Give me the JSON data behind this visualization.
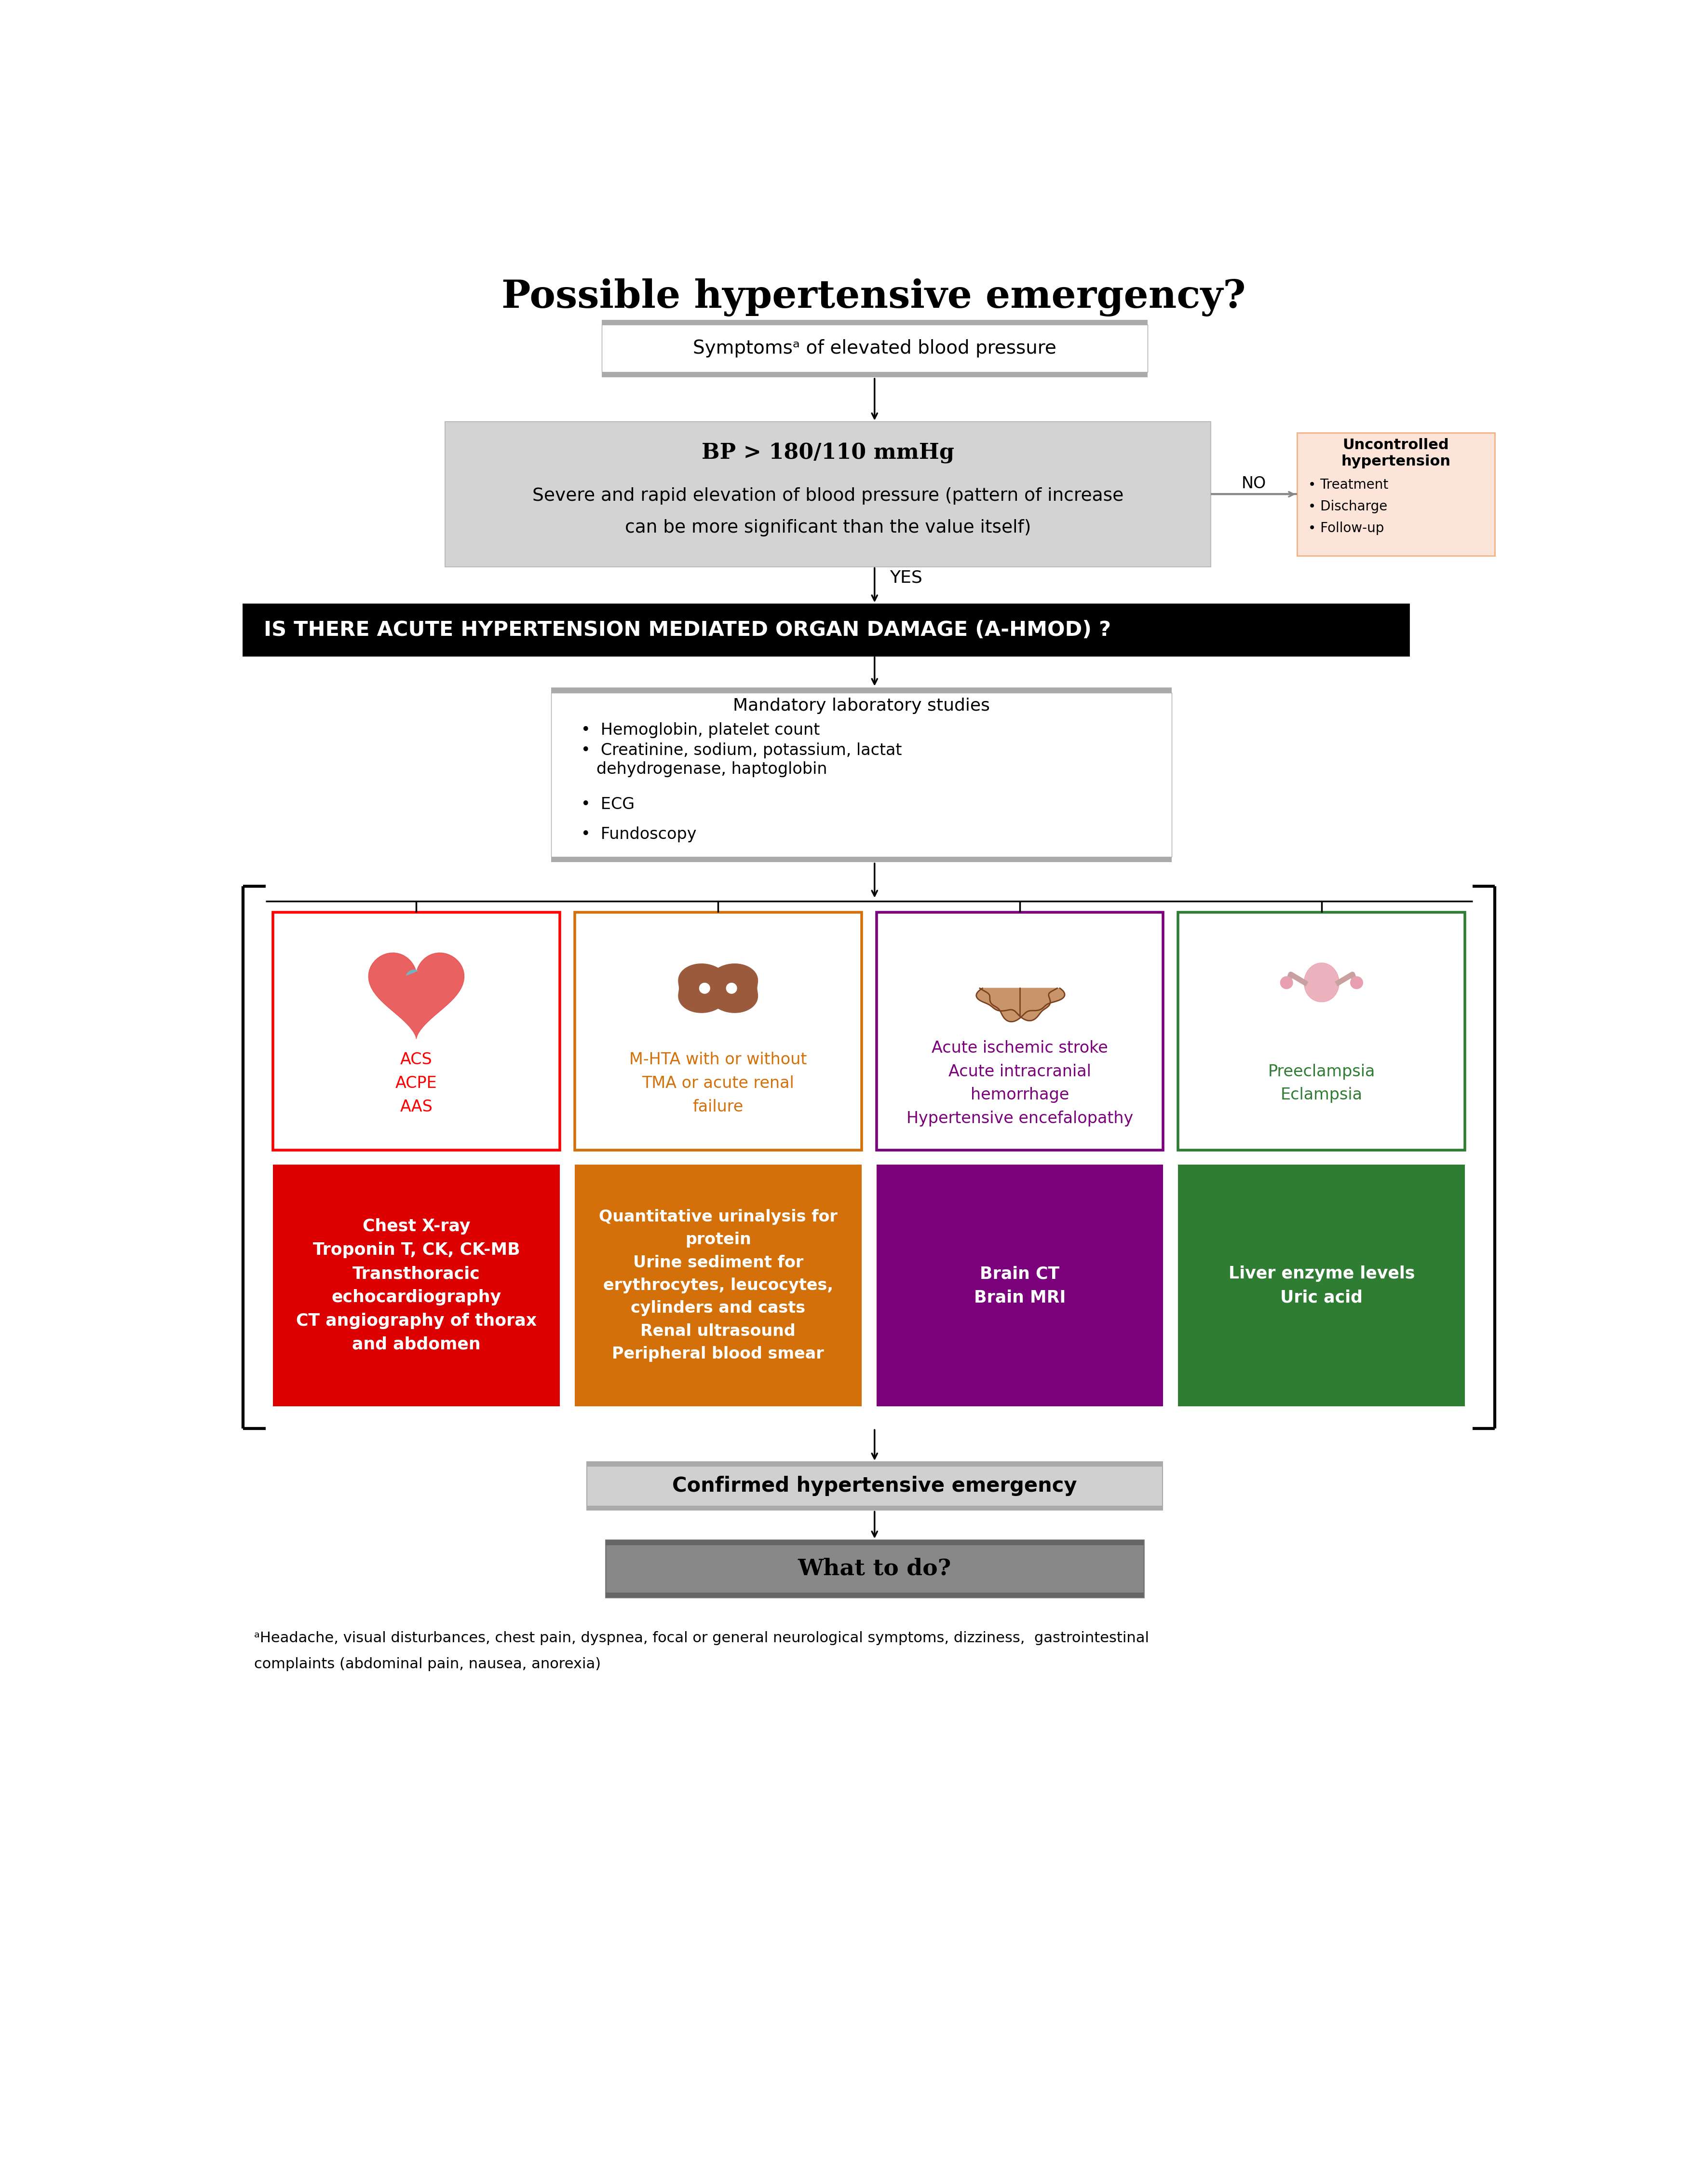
{
  "title": "Possible hypertensive emergency?",
  "title_fontsize": 58,
  "bg_color": "#ffffff",
  "box1_text": "Symptomsᵃ of elevated blood pressure",
  "box2_bp_bold": "BP > 180/110 mmHg",
  "box2_line2": "Severe and rapid elevation of blood pressure (pattern of increase",
  "box2_line3": "can be more significant than the value itself)",
  "box2_color": "#d3d3d3",
  "box3_text": "IS THERE ACUTE HYPERTENSION MEDIATED ORGAN DAMAGE (A-HMOD) ?",
  "box3_bg": "#000000",
  "box3_fg": "#ffffff",
  "box4_title": "Mandatory laboratory studies",
  "box4_bullets": [
    "Hemoglobin, platelet count",
    "Creatinine, sodium, potassium, lactat\n   dehydrogenase, haptoglobin",
    "ECG",
    "Fundoscopy"
  ],
  "side_box_title": "Uncontrolled\nhypertension",
  "side_box_bullets": [
    "Treatment",
    "Discharge",
    "Follow-up"
  ],
  "side_box_color": "#fce5d8",
  "side_box_border": "#f4b183",
  "no_label": "NO",
  "yes_label": "YES",
  "card1_border": "#ff0000",
  "card1_text": "ACS\nACPE\nAAS",
  "card1_color_text": "#ff0000",
  "card2_border": "#d4700a",
  "card2_text": "M-HTA with or without\nTMA or acute renal\nfailure",
  "card2_color_text": "#d4700a",
  "card3_border": "#7b007b",
  "card3_text": "Acute ischemic stroke\nAcute intracranial\nhemorrhage\nHypertensive encefalopathy",
  "card3_color_text": "#7b007b",
  "card4_border": "#2e7d32",
  "card4_text": "Preeclampsia\nEclampsia",
  "card4_color_text": "#2e7d32",
  "diag1_bg": "#dd0000",
  "diag1_text": "Chest X-ray\nTroponin T, CK, CK-MB\nTransthoracic\nechocardiography\nCT angiography of thorax\nand abdomen",
  "diag2_bg": "#d4700a",
  "diag2_text": "Quantitative urinalysis for\nprotein\nUrine sediment for\nerythrocytes, leucocytes,\ncylinders and casts\nRenal ultrasound\nPeripheral blood smear",
  "diag3_bg": "#7b007b",
  "diag3_text": "Brain CT\nBrain MRI",
  "diag4_bg": "#2e7d32",
  "diag4_text": "Liver enzyme levels\nUric acid",
  "confirm_text": "Confirmed hypertensive emergency",
  "whattodo_text": "What to do?",
  "footnote_line1": "ᵃHeadache, visual disturbances, chest pain, dyspnea, focal or general neurological symptoms, dizziness,  gastrointestinal",
  "footnote_line2": "complaints (abdominal pain, nausea, anorexia)"
}
